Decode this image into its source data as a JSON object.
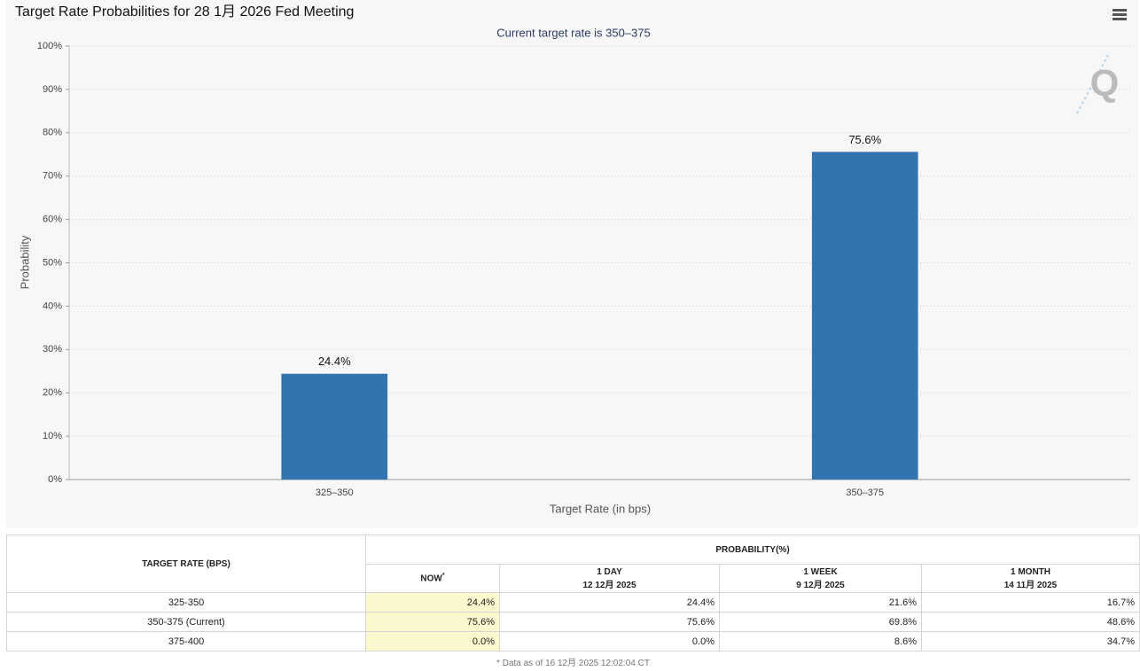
{
  "chart_data": {
    "type": "bar",
    "title": "Target Rate Probabilities for 28 1月 2026 Fed Meeting",
    "subtitle": "Current target rate is 350–375",
    "logo": "Q",
    "y_label": "Probability",
    "x_label": "Target Rate (in bps)",
    "categories": [
      "325–350",
      "350–375"
    ],
    "values": [
      24.4,
      75.6
    ],
    "value_labels": [
      "24.4%",
      "75.6%"
    ],
    "color": "#3174af",
    "ylim": [
      0,
      100
    ],
    "yticks": [
      {
        "value": 0,
        "label": "0%"
      },
      {
        "value": 10,
        "label": "10%"
      },
      {
        "value": 20,
        "label": "20%"
      },
      {
        "value": 30,
        "label": "30%"
      },
      {
        "value": 40,
        "label": "40%"
      },
      {
        "value": 50,
        "label": "50%"
      },
      {
        "value": 60,
        "label": "60%"
      },
      {
        "value": 70,
        "label": "70%"
      },
      {
        "value": 80,
        "label": "80%"
      },
      {
        "value": 90,
        "label": "90%"
      },
      {
        "value": 100,
        "label": "100%"
      }
    ],
    "grid": true
  },
  "table": {
    "header": {
      "rate": "TARGET RATE (BPS)",
      "probability": "PROBABILITY(%)",
      "columns": [
        {
          "label": "NOW",
          "note": "*"
        },
        {
          "label": "1 DAY",
          "date": "12 12月 2025"
        },
        {
          "label": "1 WEEK",
          "date": "9 12月 2025"
        },
        {
          "label": "1 MONTH",
          "date": "14 11月 2025"
        }
      ]
    },
    "rows": [
      [
        "325-350",
        "24.4%",
        "24.4%",
        "21.6%",
        "16.7%"
      ],
      [
        "350-375 (Current)",
        "75.6%",
        "75.6%",
        "69.8%",
        "48.6%"
      ],
      [
        "375-400",
        "0.0%",
        "0.0%",
        "8.6%",
        "34.7%"
      ]
    ],
    "footnote": "* Data as of 16 12月 2025 12:02:04 CT"
  }
}
